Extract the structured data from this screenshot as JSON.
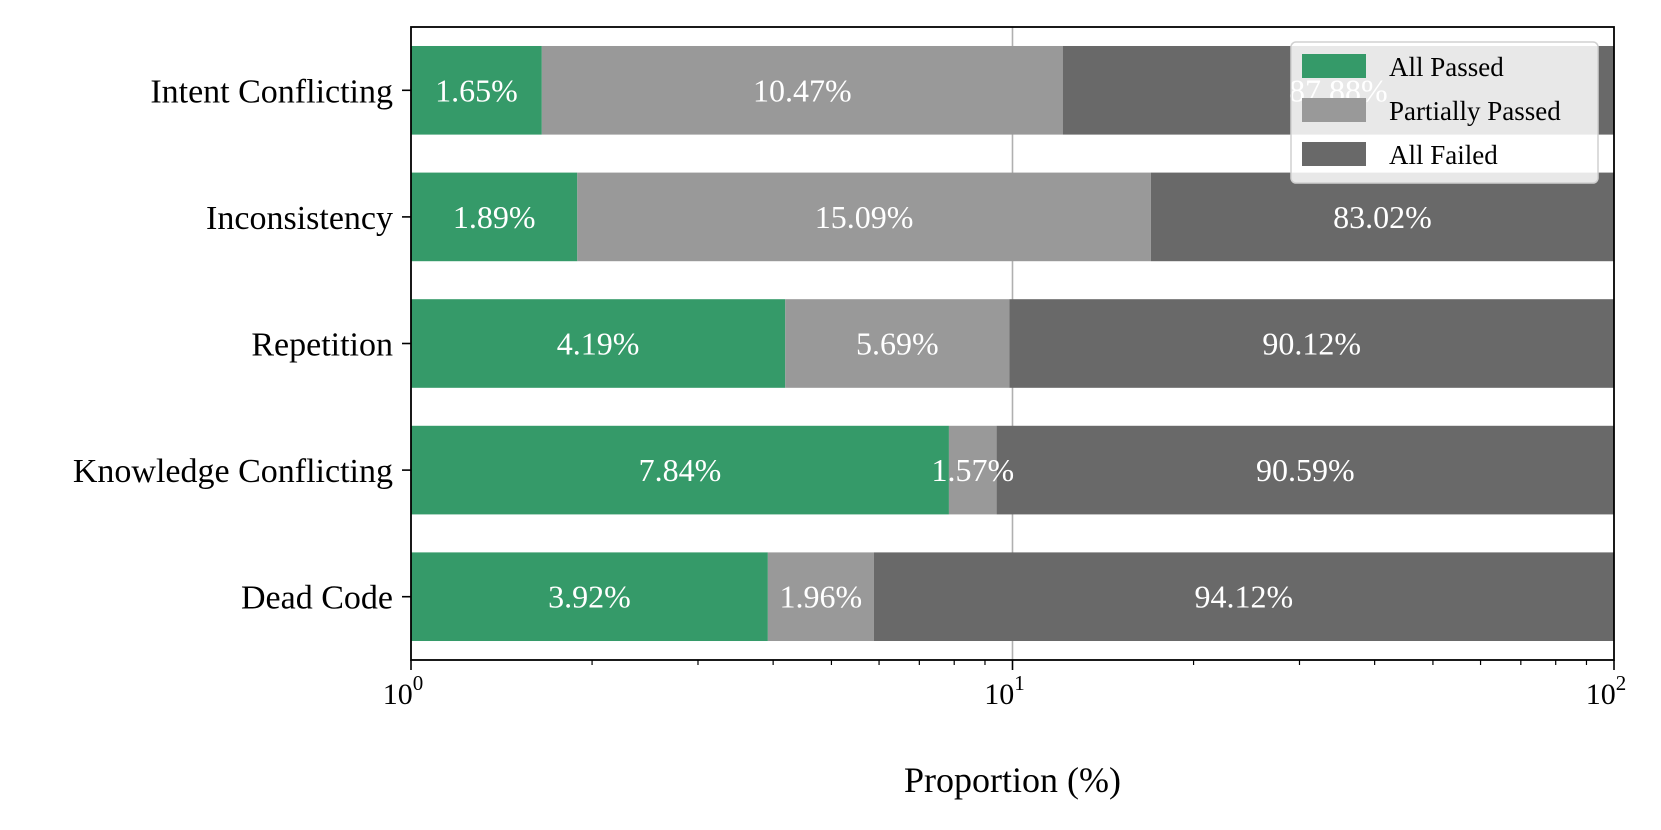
{
  "chart_data": {
    "type": "bar",
    "orientation": "horizontal",
    "stacked": true,
    "x_scale": "log",
    "xlim": [
      1,
      100
    ],
    "x_ticks": [
      {
        "value": 1,
        "base": "10",
        "exp": "0"
      },
      {
        "value": 10,
        "base": "10",
        "exp": "1"
      },
      {
        "value": 100,
        "base": "10",
        "exp": "2"
      }
    ],
    "xlabel": "Proportion (%)",
    "ylabel": "",
    "title": "",
    "grid": "vertical line at 10",
    "legend_position": "top-right",
    "categories": [
      "Intent Conflicting",
      "Inconsistency",
      "Repetition",
      "Knowledge Conflicting",
      "Dead Code"
    ],
    "series": [
      {
        "name": "All Passed",
        "color": "#359a69",
        "values": [
          1.65,
          1.89,
          4.19,
          7.84,
          3.92
        ],
        "labels": [
          "1.65%",
          "1.89%",
          "4.19%",
          "7.84%",
          "3.92%"
        ]
      },
      {
        "name": "Partially Passed",
        "color": "#999999",
        "values": [
          10.47,
          15.09,
          5.69,
          1.57,
          1.96
        ],
        "labels": [
          "10.47%",
          "15.09%",
          "5.69%",
          "1.57%",
          "1.96%"
        ]
      },
      {
        "name": "All Failed",
        "color": "#696969",
        "values": [
          87.88,
          83.02,
          90.12,
          90.59,
          94.12
        ],
        "labels": [
          "87.88%",
          "83.02%",
          "90.12%",
          "90.59%",
          "94.12%"
        ]
      }
    ]
  }
}
